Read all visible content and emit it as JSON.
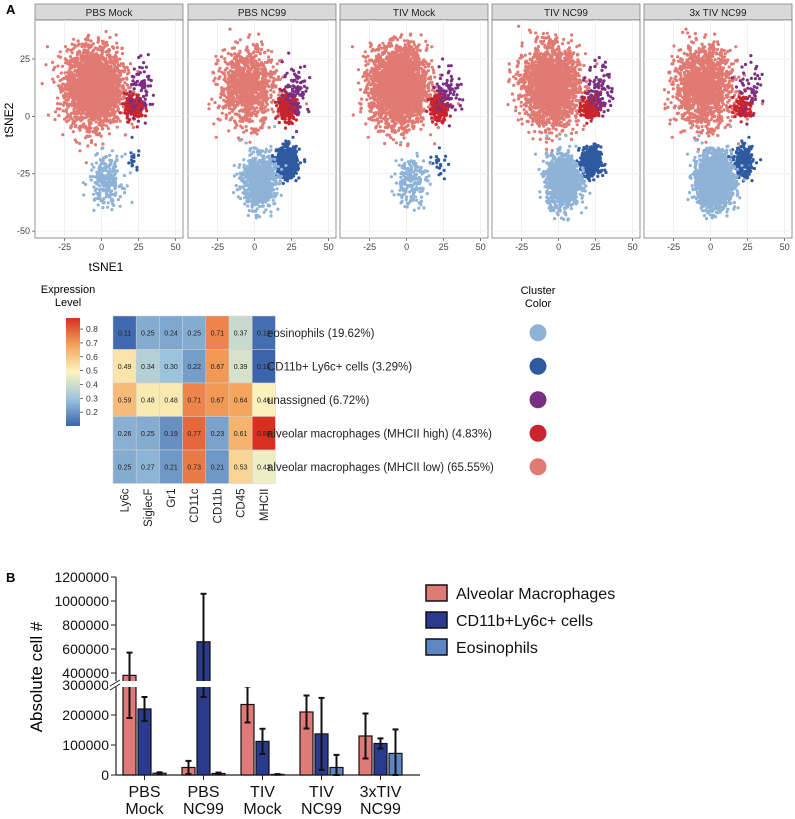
{
  "panel_labels": {
    "a": "A",
    "b": "B"
  },
  "colors": {
    "eosinophils": "#8fb2d7",
    "cd11b_ly6c": "#2f5aa0",
    "unassigned": "#7b2f82",
    "am_mhcii_high": "#c8252f",
    "am_mhcii_low": "#e07a72",
    "strip_bg": "#d9d9d9",
    "panel_grid": "#ececec",
    "bar_am": "#e07a78",
    "bar_cd11b": "#2a3a8c",
    "bar_eos": "#5f86c4"
  },
  "chart_data": [
    {
      "type": "scatter",
      "title": "",
      "xlabel": "tSNE1",
      "ylabel": "tSNE2",
      "xlim": [
        -45,
        55
      ],
      "ylim": [
        -53,
        42
      ],
      "x_ticks": [
        "-25",
        "0",
        "25",
        "50"
      ],
      "y_ticks": [
        "25",
        "0",
        "-25",
        "-50"
      ],
      "x_tick_values": [
        -25,
        0,
        25,
        50
      ],
      "y_tick_values": [
        25,
        0,
        -25,
        -50
      ],
      "facets": [
        "PBS Mock",
        "PBS NC99",
        "TIV Mock",
        "TIV NC99",
        "3x TIV NC99"
      ],
      "clusters": [
        {
          "key": "am_mhcii_low",
          "center": [
            -5,
            13
          ],
          "spread": [
            17,
            15
          ]
        },
        {
          "key": "am_mhcii_high",
          "center": [
            22,
            4
          ],
          "spread": [
            6,
            5
          ]
        },
        {
          "key": "unassigned",
          "center": [
            28,
            12
          ],
          "spread": [
            8,
            10
          ]
        },
        {
          "key": "cd11b_ly6c",
          "center": [
            22,
            -20
          ],
          "spread": [
            6,
            6
          ]
        },
        {
          "key": "eosinophils",
          "center": [
            3,
            -28
          ],
          "spread": [
            10,
            10
          ]
        }
      ],
      "facet_counts": [
        [
          2600,
          180,
          70,
          15,
          220
        ],
        [
          1000,
          260,
          90,
          700,
          900
        ],
        [
          2800,
          200,
          80,
          20,
          200
        ],
        [
          2100,
          160,
          90,
          420,
          1300
        ],
        [
          1500,
          110,
          50,
          260,
          2500
        ]
      ]
    },
    {
      "type": "heatmap",
      "legend_title": [
        "Expression",
        "Level"
      ],
      "legend_ticks": [
        "0.8",
        "0.7",
        "0.6",
        "0.5",
        "0.4",
        "0.3",
        "0.2"
      ],
      "legend_tick_values": [
        0.8,
        0.7,
        0.6,
        0.5,
        0.4,
        0.3,
        0.2
      ],
      "legend_range": [
        0.1,
        0.88
      ],
      "columns": [
        "Ly6c",
        "SiglecF",
        "Gr1",
        "CD11c",
        "CD11b",
        "CD45",
        "MHCII"
      ],
      "rows": [
        {
          "label": "eosinophils (19.62%)",
          "key": "eosinophils",
          "values": [
            "0.11",
            "0.25",
            "0.24",
            "0.25",
            "0.71",
            "0.37",
            "0.12"
          ]
        },
        {
          "label": "CD11b+ Ly6c+ cells (3.29%)",
          "key": "cd11b_ly6c",
          "values": [
            "0.49",
            "0.34",
            "0.30",
            "0.22",
            "0.67",
            "0.39",
            "0.10"
          ]
        },
        {
          "label": "unassigned (6.72%)",
          "key": "unassigned",
          "values": [
            "0.59",
            "0.48",
            "0.48",
            "0.71",
            "0.67",
            "0.64",
            "0.46"
          ]
        },
        {
          "label": "alveolar macrophages (MHCII high) (4.83%)",
          "key": "am_mhcii_high",
          "values": [
            "0.26",
            "0.25",
            "0.19",
            "0.77",
            "0.23",
            "0.61",
            "0.88"
          ]
        },
        {
          "label": "alveolar macrophages (MHCII low) (65.55%)",
          "key": "am_mhcii_low",
          "values": [
            "0.25",
            "0.27",
            "0.21",
            "0.73",
            "0.21",
            "0.53",
            "0.43"
          ]
        }
      ],
      "cluster_color_title": [
        "Cluster",
        "Color"
      ]
    },
    {
      "type": "bar",
      "ylabel": "Absolute cell #",
      "categories": [
        [
          "PBS",
          "Mock"
        ],
        [
          "PBS",
          "NC99"
        ],
        [
          "TIV",
          "Mock"
        ],
        [
          "TIV",
          "NC99"
        ],
        [
          "3xTIV",
          "NC99"
        ]
      ],
      "y_ticks_top": [
        "1200000",
        "1000000",
        "800000",
        "600000",
        "400000"
      ],
      "y_tick_values_top": [
        1200000,
        1000000,
        800000,
        600000,
        400000
      ],
      "y_ticks_bottom": [
        "300000",
        "200000",
        "100000",
        "0"
      ],
      "y_tick_values_bottom": [
        300000,
        200000,
        100000,
        0
      ],
      "axis_break": 300000,
      "top_range": [
        300000,
        1200000
      ],
      "series": [
        {
          "name": "Alveolar Macrophages",
          "key": "bar_am",
          "values": [
            380000,
            25000,
            235000,
            210000,
            130000
          ],
          "errors": [
            190000,
            22000,
            60000,
            55000,
            75000
          ]
        },
        {
          "name": "CD11b+Ly6c+ cells",
          "key": "bar_cd11b",
          "values": [
            220000,
            660000,
            112000,
            137000,
            105000
          ],
          "errors": [
            40000,
            400000,
            42000,
            120000,
            17000
          ]
        },
        {
          "name": "Eosinophils",
          "key": "bar_eos",
          "values": [
            6000,
            5000,
            2000,
            25000,
            72000
          ],
          "errors": [
            3000,
            3000,
            1000,
            42000,
            80000
          ]
        }
      ]
    }
  ]
}
